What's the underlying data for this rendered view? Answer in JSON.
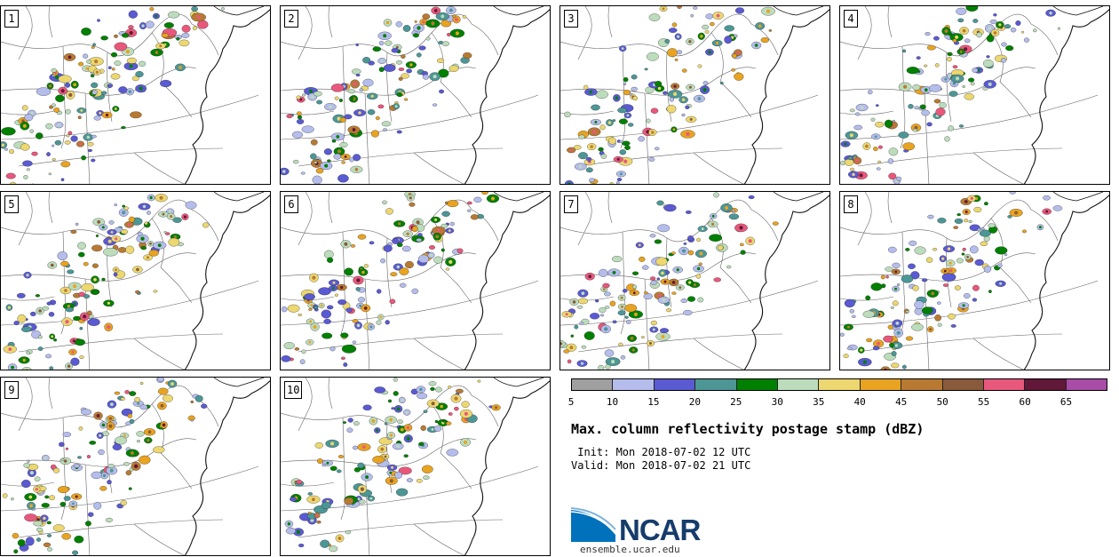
{
  "panels": [
    {
      "label": "1"
    },
    {
      "label": "2"
    },
    {
      "label": "3"
    },
    {
      "label": "4"
    },
    {
      "label": "5"
    },
    {
      "label": "6"
    },
    {
      "label": "7"
    },
    {
      "label": "8"
    },
    {
      "label": "9"
    },
    {
      "label": "10"
    }
  ],
  "colorbar": {
    "colors": [
      "#a0a0a0",
      "#b4bdeb",
      "#5a5ad2",
      "#4d9696",
      "#008000",
      "#bcdcbc",
      "#ecd770",
      "#e8a320",
      "#b87a32",
      "#8a5a3c",
      "#e8587c",
      "#621838",
      "#a84ca8"
    ],
    "ticks": [
      "5",
      "10",
      "15",
      "20",
      "25",
      "30",
      "35",
      "40",
      "45",
      "50",
      "55",
      "60",
      "65"
    ]
  },
  "title": "Max. column reflectivity postage stamp (dBZ)",
  "init": " Init: Mon 2018-07-02 12 UTC",
  "valid": "Valid: Mon 2018-07-02 21 UTC",
  "logo": {
    "text": "NCAR",
    "url": "ensemble.ucar.edu"
  }
}
